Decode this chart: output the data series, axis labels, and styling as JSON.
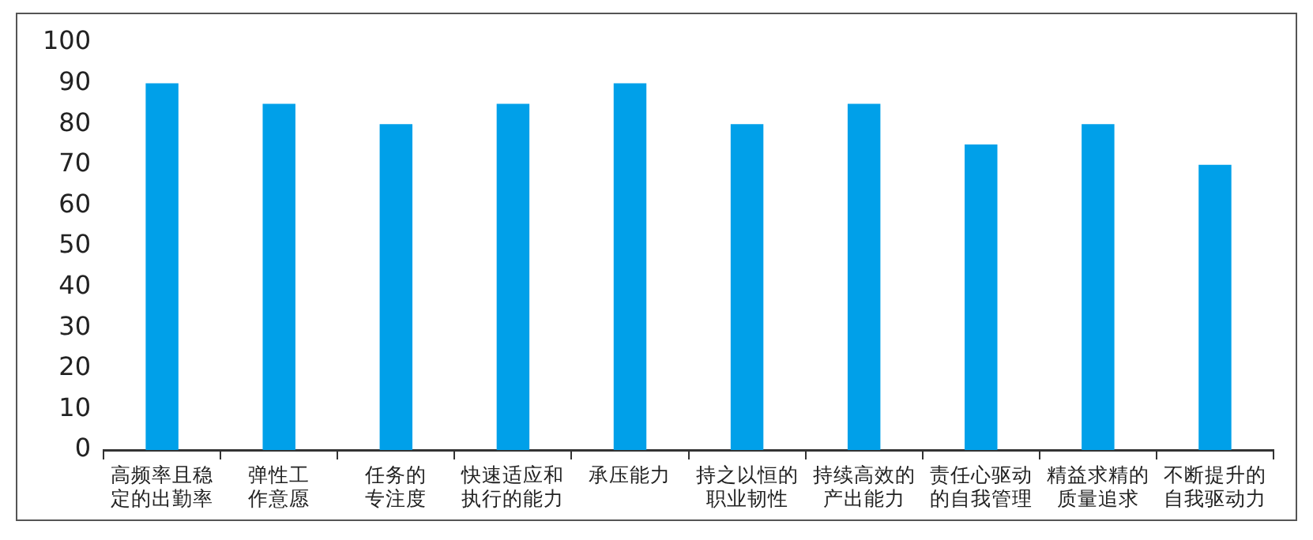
{
  "chart_data": {
    "type": "bar",
    "categories": [
      "高频率且稳定的出勤率",
      "弹性工作意愿",
      "任务的专注度",
      "快速适应和执行的能力",
      "承压能力",
      "持之以恒的职业韧性",
      "持续高效的产出能力",
      "责任心驱动的自我管理",
      "精益求精的质量追求",
      "不断提升的自我驱动力"
    ],
    "values": [
      90,
      85,
      80,
      85,
      90,
      80,
      85,
      75,
      80,
      70
    ],
    "color": "#00a0e9",
    "ylim": [
      0,
      100
    ],
    "yticks": [
      0,
      10,
      20,
      30,
      40,
      50,
      60,
      70,
      80,
      90,
      100
    ],
    "grid": false,
    "legend": false
  }
}
